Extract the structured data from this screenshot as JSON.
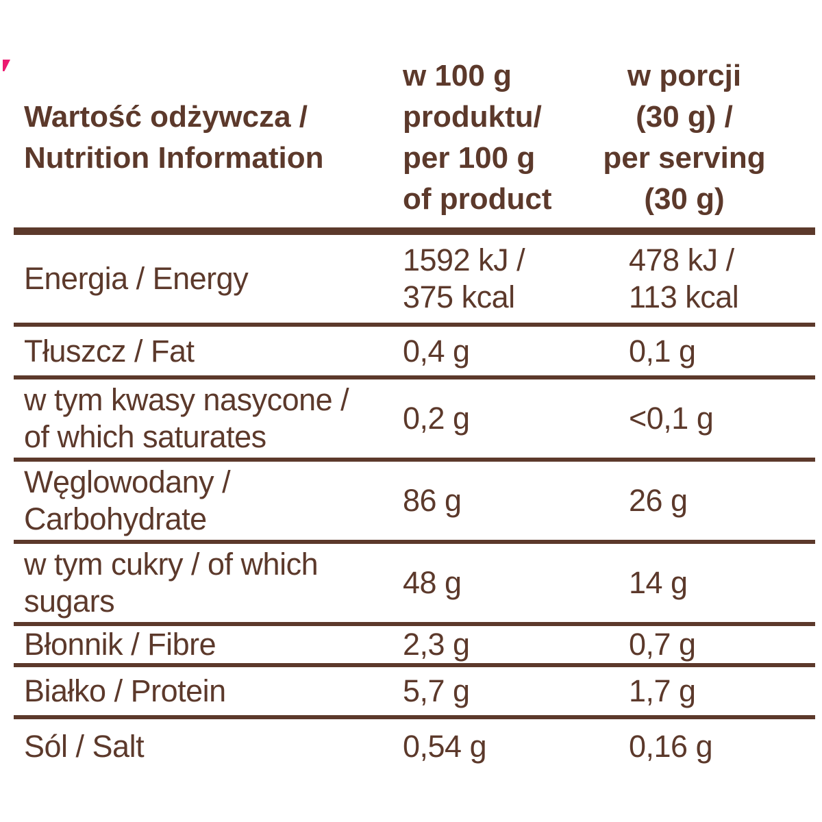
{
  "colors": {
    "text_brown": "#5c392b",
    "rule_brown": "#5c392b",
    "pink_mark": "#ec1a70",
    "background": "#ffffff"
  },
  "table": {
    "header": {
      "nutrient_col": "Wartość odżywcza /\nNutrition Information",
      "per_100g_col": "w 100 g\nproduktu/\nper 100 g\nof product",
      "per_serving_col": "w porcji\n(30 g) /\nper serving\n(30 g)"
    },
    "rows": [
      {
        "label": "Energia / Energy",
        "per_100g": "1592 kJ /\n375 kcal",
        "per_serving": "478 kJ /\n113 kcal"
      },
      {
        "label": "Tłuszcz / Fat",
        "per_100g": "0,4 g",
        "per_serving": "0,1 g"
      },
      {
        "label": "w tym kwasy nasycone /\nof which saturates",
        "per_100g": "0,2 g",
        "per_serving": "<0,1 g"
      },
      {
        "label": "Węglowodany /\nCarbohydrate",
        "per_100g": "86 g",
        "per_serving": "26 g"
      },
      {
        "label": "w tym cukry / of which\nsugars",
        "per_100g": "48 g",
        "per_serving": "14 g"
      },
      {
        "label": "Błonnik / Fibre",
        "per_100g": "2,3 g",
        "per_serving": "0,7 g"
      },
      {
        "label": "Białko / Protein",
        "per_100g": "5,7 g",
        "per_serving": "1,7 g"
      },
      {
        "label": "Sól / Salt",
        "per_100g": "0,54 g",
        "per_serving": "0,16 g"
      }
    ]
  }
}
